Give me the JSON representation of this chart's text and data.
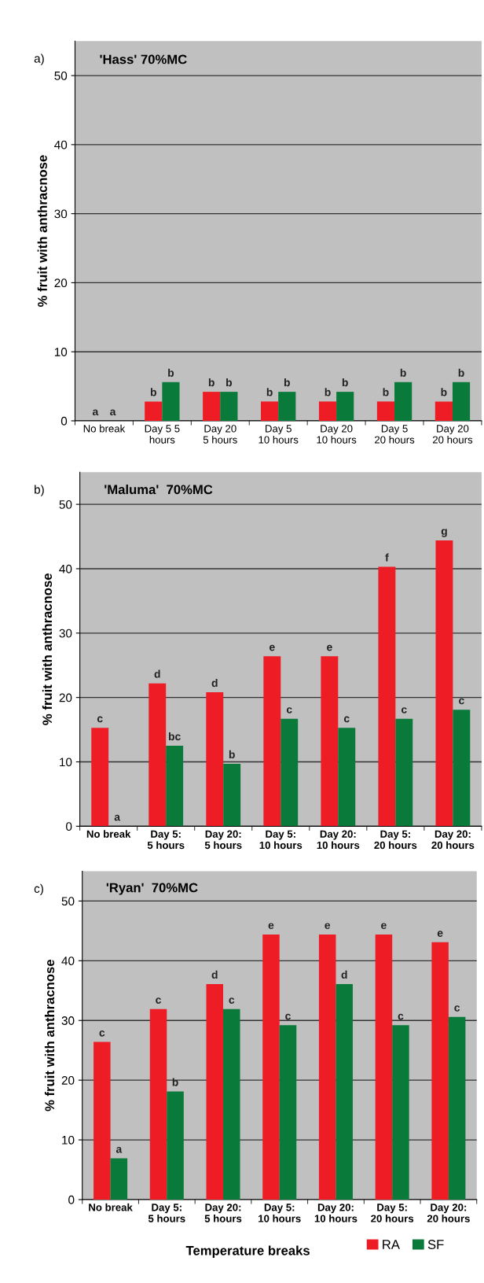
{
  "chart_data": [
    {
      "type": "bar",
      "title": "'Hass' 70%MC",
      "ylabel": "% fruit with anthracnose",
      "annotations": [
        "a)"
      ],
      "categories": [
        "No break",
        "Day 5 5\nhours",
        "Day 20\n5 hours",
        "Day 5\n10 hours",
        "Day 20\n10 hours",
        "Day 5\n20 hours",
        "Day 20\n20 hours"
      ],
      "series": [
        {
          "color": "#ee1c24",
          "values": [
            0,
            2.8,
            4.2,
            2.8,
            2.8,
            2.8,
            2.8
          ],
          "value_labels": [
            "a",
            "b",
            "b",
            "b",
            "b",
            "b",
            "b"
          ]
        },
        {
          "color": "#0a7a3a",
          "values": [
            0,
            5.6,
            4.2,
            4.2,
            4.2,
            5.6,
            5.6
          ],
          "value_labels": [
            "a",
            "b",
            "b",
            "b",
            "b",
            "b",
            "b"
          ]
        }
      ],
      "ylim": [
        0,
        55
      ],
      "yticks": [
        0,
        10,
        20,
        30,
        40,
        50
      ],
      "grid": "y",
      "legend": false
    },
    {
      "type": "bar",
      "title": "'Maluma'  70%MC",
      "ylabel": "% fruit with anthracnose",
      "annotations": [
        "b)"
      ],
      "categories": [
        "No break",
        "Day 5:\n5 hours",
        "Day 20:\n5 hours",
        "Day 5:\n10 hours",
        "Day 20:\n10 hours",
        "Day 5:\n20 hours",
        "Day 20:\n20 hours"
      ],
      "series": [
        {
          "color": "#ee1c24",
          "values": [
            15.3,
            22.2,
            20.8,
            26.4,
            26.4,
            40.3,
            44.4
          ],
          "value_labels": [
            "c",
            "d",
            "d",
            "e",
            "e",
            "f",
            "g"
          ]
        },
        {
          "color": "#0a7a3a",
          "values": [
            0,
            12.5,
            9.7,
            16.7,
            15.3,
            16.7,
            18.1
          ],
          "value_labels": [
            "a",
            "bc",
            "b",
            "c",
            "c",
            "c",
            "c"
          ]
        }
      ],
      "ylim": [
        0,
        55
      ],
      "yticks": [
        0,
        10,
        20,
        30,
        40,
        50
      ],
      "grid": "y",
      "legend": false
    },
    {
      "type": "bar",
      "title": "'Ryan'  70%MC",
      "ylabel": "% fruit with anthracnose",
      "xlabel": "Temperature breaks",
      "annotations": [
        "c)"
      ],
      "categories": [
        "No break",
        "Day 5:\n5 hours",
        "Day 20:\n5 hours",
        "Day 5:\n10 hours",
        "Day 20:\n10 hours",
        "Day 5:\n20 hours",
        "Day 20:\n20 hours"
      ],
      "series": [
        {
          "name": "RA",
          "color": "#ee1c24",
          "values": [
            26.4,
            31.9,
            36.1,
            44.4,
            44.4,
            44.4,
            43.1
          ],
          "value_labels": [
            "c",
            "c",
            "d",
            "e",
            "e",
            "e",
            "e"
          ]
        },
        {
          "name": "SF",
          "color": "#0a7a3a",
          "values": [
            6.9,
            18.1,
            31.9,
            29.2,
            36.1,
            29.2,
            30.6
          ],
          "value_labels": [
            "a",
            "b",
            "c",
            "c",
            "d",
            "c",
            "c"
          ]
        }
      ],
      "ylim": [
        0,
        55
      ],
      "yticks": [
        0,
        10,
        20,
        30,
        40,
        50
      ],
      "grid": "y",
      "legend": "bottom"
    }
  ]
}
